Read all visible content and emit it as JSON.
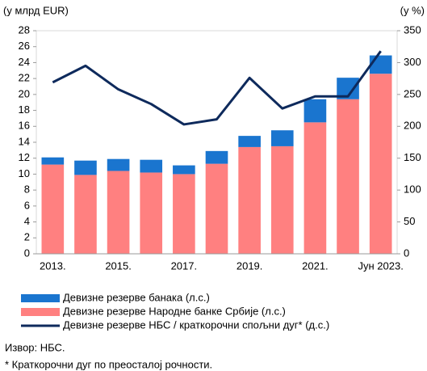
{
  "chart_data": {
    "type": "bar",
    "y_label": "(у млрд EUR)",
    "y2_label": "(у %)",
    "categories": [
      "2013.",
      null,
      "2015.",
      null,
      "2017.",
      null,
      "2019.",
      null,
      "2021.",
      null,
      "Јун 2023."
    ],
    "series": [
      {
        "name": "Девизне резерве банака (л.с.)",
        "color": "#1a75cf",
        "type": "bar",
        "values": [
          0.9,
          1.8,
          1.5,
          1.6,
          1.1,
          1.6,
          1.4,
          2.0,
          2.9,
          2.7,
          2.3
        ]
      },
      {
        "name": "Девизне резерве Народне банке Србије (л.с.)",
        "color": "#ff8080",
        "type": "bar",
        "values": [
          11.2,
          9.9,
          10.4,
          10.2,
          10.0,
          11.3,
          13.4,
          13.5,
          16.5,
          19.4,
          22.6
        ]
      },
      {
        "name": "Девизне резерве НБС / краткорочни спољни дуг* (д.с.)",
        "color": "#0e2a5c",
        "type": "line",
        "axis": "y2",
        "values": [
          269,
          295,
          258,
          235,
          203,
          211,
          276,
          228,
          247,
          247,
          318
        ]
      }
    ],
    "ylim": [
      0,
      28
    ],
    "yticks": [
      0,
      2,
      4,
      6,
      8,
      10,
      12,
      14,
      16,
      18,
      20,
      22,
      24,
      26,
      28
    ],
    "y2lim": [
      0,
      350
    ],
    "y2ticks": [
      0,
      50,
      100,
      150,
      200,
      250,
      300,
      350
    ],
    "grid": false,
    "source": "Извор: НБС.",
    "footnote": "* Краткорочни дуг по преосталој рочности."
  }
}
